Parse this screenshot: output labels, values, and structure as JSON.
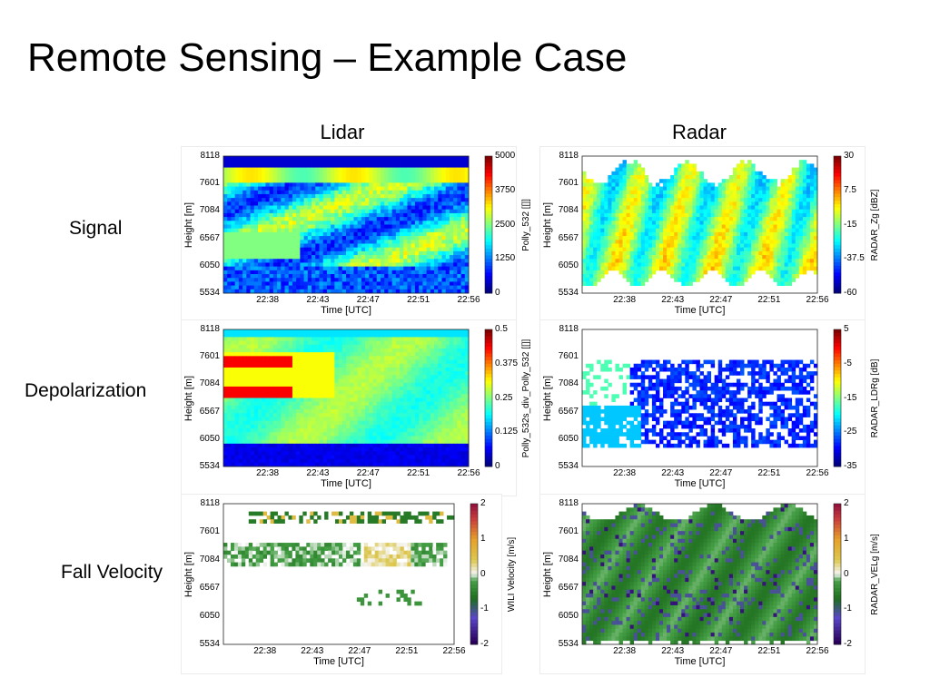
{
  "slide": {
    "title": "Remote Sensing – Example Case",
    "columns": [
      "Lidar",
      "Radar"
    ],
    "rows": [
      "Signal",
      "Depolarization",
      "Fall Velocity"
    ]
  },
  "chart_data": [
    {
      "id": "lidar-signal",
      "type": "heatmap",
      "instrument": "Lidar",
      "quantity": "Signal",
      "xlabel": "Time [UTC]",
      "ylabel": "Height [m]",
      "xticks": [
        "22:38",
        "22:43",
        "22:47",
        "22:51",
        "22:56"
      ],
      "yticks": [
        "8118",
        "7601",
        "7084",
        "6567",
        "6050",
        "5534"
      ],
      "colorbar": {
        "label": "Polly_532 [[]]",
        "ticks": [
          "5000",
          "3750",
          "2500",
          "1250",
          "0"
        ],
        "range": [
          0,
          5000
        ],
        "colormap": "jet"
      },
      "coverage": "full"
    },
    {
      "id": "radar-signal",
      "type": "heatmap",
      "instrument": "Radar",
      "quantity": "Signal",
      "xlabel": "Time [UTC]",
      "ylabel": "Height [m]",
      "xticks": [
        "22:38",
        "22:43",
        "22:47",
        "22:51",
        "22:56"
      ],
      "yticks": [
        "8118",
        "7601",
        "7084",
        "6567",
        "6050",
        "5534"
      ],
      "colorbar": {
        "label": "RADAR_Zg [dBZ]",
        "ticks": [
          "30",
          "7.5",
          "-15",
          "-37.5",
          "-60"
        ],
        "range": [
          -60,
          30
        ],
        "colormap": "jet"
      },
      "coverage": "cloud"
    },
    {
      "id": "lidar-depol",
      "type": "heatmap",
      "instrument": "Lidar",
      "quantity": "Depolarization",
      "xlabel": "Time [UTC]",
      "ylabel": "Height [m]",
      "xticks": [
        "22:38",
        "22:43",
        "22:47",
        "22:51",
        "22:56"
      ],
      "yticks": [
        "8118",
        "7601",
        "7084",
        "6567",
        "6050",
        "5534"
      ],
      "colorbar": {
        "label": "Polly_532s_div_Polly_532 [[]]",
        "ticks": [
          "0.5",
          "0.375",
          "0.25",
          "0.125",
          "0"
        ],
        "range": [
          0,
          0.5
        ],
        "colormap": "jet"
      },
      "coverage": "full"
    },
    {
      "id": "radar-depol",
      "type": "heatmap",
      "instrument": "Radar",
      "quantity": "Depolarization",
      "xlabel": "Time [UTC]",
      "ylabel": "Height [m]",
      "xticks": [
        "22:38",
        "22:43",
        "22:47",
        "22:51",
        "22:56"
      ],
      "yticks": [
        "8118",
        "7601",
        "7084",
        "6567",
        "6050",
        "5534"
      ],
      "colorbar": {
        "label": "RADAR_LDRg [dB]",
        "ticks": [
          "5",
          "-5",
          "-15",
          "-25",
          "-35"
        ],
        "range": [
          -35,
          5
        ],
        "colormap": "jet"
      },
      "coverage": "sparse"
    },
    {
      "id": "lidar-vel",
      "type": "heatmap",
      "instrument": "Lidar",
      "quantity": "Fall Velocity",
      "xlabel": "Time [UTC]",
      "ylabel": "Height [m]",
      "xticks": [
        "22:38",
        "22:43",
        "22:47",
        "22:51",
        "22:56"
      ],
      "yticks": [
        "8118",
        "7601",
        "7084",
        "6567",
        "6050",
        "5534"
      ],
      "colorbar": {
        "label": "WILI Velocity [m/s]",
        "ticks": [
          "2",
          "1",
          "0",
          "-1",
          "-2"
        ],
        "range": [
          -2,
          2
        ],
        "colormap": "diverging"
      },
      "coverage": "bands"
    },
    {
      "id": "radar-vel",
      "type": "heatmap",
      "instrument": "Radar",
      "quantity": "Fall Velocity",
      "xlabel": "Time [UTC]",
      "ylabel": "Height [m]",
      "xticks": [
        "22:38",
        "22:43",
        "22:47",
        "22:51",
        "22:56"
      ],
      "yticks": [
        "8118",
        "7601",
        "7084",
        "6567",
        "6050",
        "5534"
      ],
      "colorbar": {
        "label": "RADAR_VELg [m/s]",
        "ticks": [
          "2",
          "1",
          "0",
          "-1",
          "-2"
        ],
        "range": [
          -2,
          2
        ],
        "colormap": "diverging"
      },
      "coverage": "cloud"
    }
  ]
}
